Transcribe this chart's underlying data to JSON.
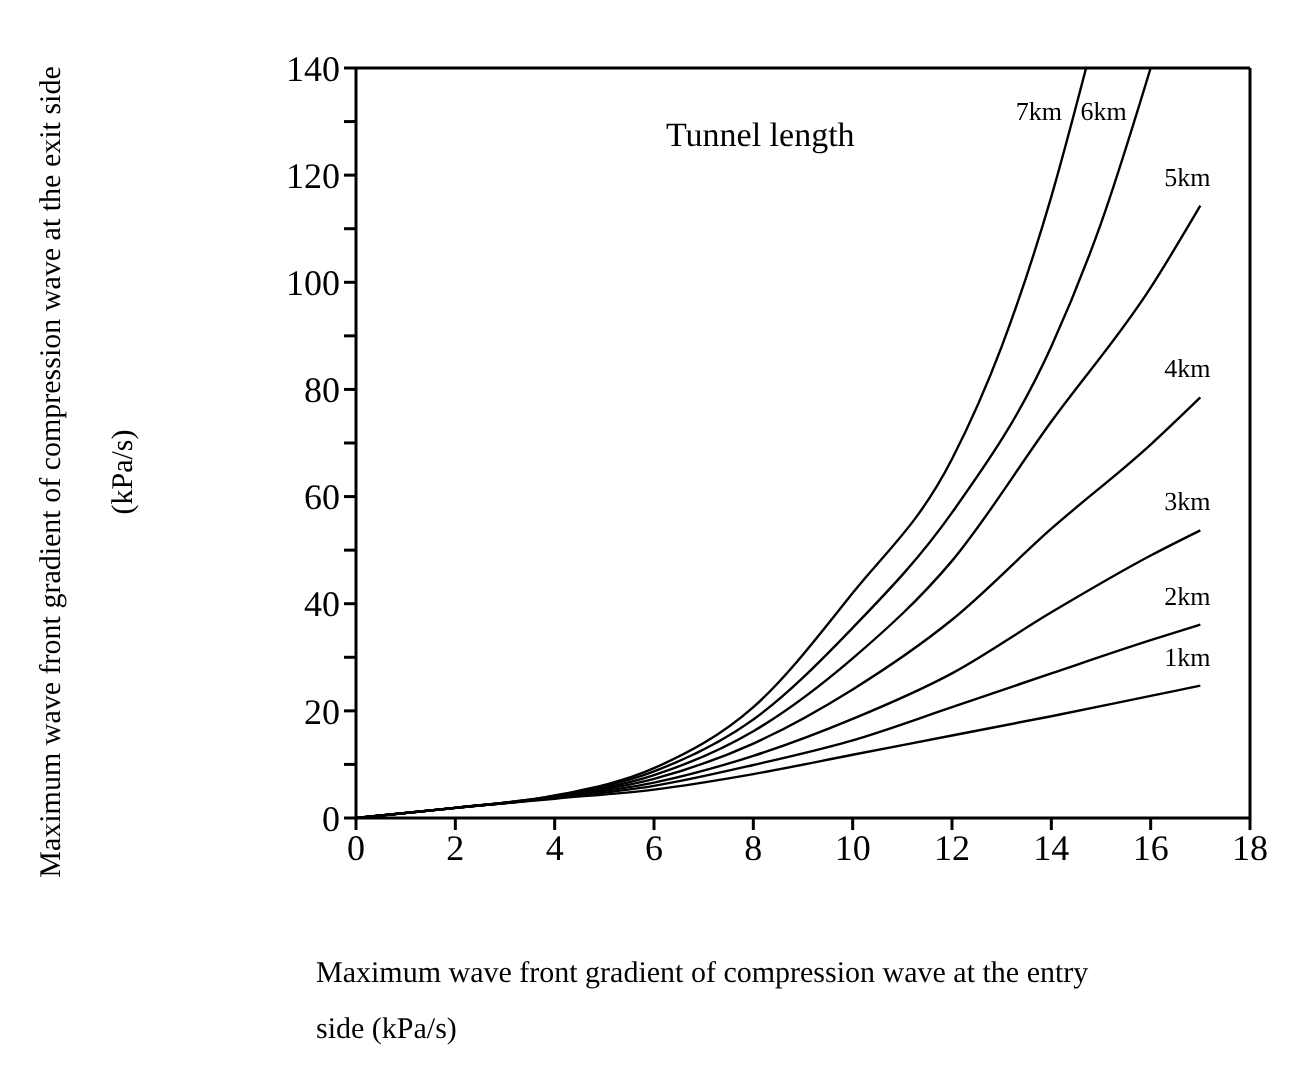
{
  "chart_data": {
    "type": "line",
    "xlabel": "Maximum wave front gradient of compression wave at the entry side (kPa/s)",
    "ylabel": "Maximum wave front gradient of compression wave at the exit side (kPa/s)",
    "xlim": [
      0,
      18
    ],
    "ylim": [
      0,
      140
    ],
    "xticks": [
      0,
      2,
      4,
      6,
      8,
      10,
      12,
      14,
      16,
      18
    ],
    "yticks": [
      0,
      {
        "value": 10,
        "label": null
      },
      20,
      {
        "value": 30,
        "label": null
      },
      40,
      {
        "value": 50,
        "label": null
      },
      60,
      {
        "value": 70,
        "label": null
      },
      80,
      {
        "value": 90,
        "label": null
      },
      100,
      {
        "value": 110,
        "label": null
      },
      120,
      {
        "value": 130,
        "label": null
      },
      140
    ],
    "legend": false,
    "marker": "none",
    "line_style": "solid",
    "annotations": [
      "Tunnel length"
    ],
    "series": [
      {
        "name": "1km",
        "color": "#000000",
        "x": [
          0,
          2,
          4,
          6,
          8,
          10,
          12,
          14,
          16,
          17
        ],
        "values": [
          0,
          1.9,
          3.6,
          5.3,
          8.2,
          11.8,
          15.4,
          19,
          22.8,
          24.7
        ]
      },
      {
        "name": "2km",
        "color": "#000000",
        "x": [
          0,
          2,
          4,
          6,
          8,
          10,
          12,
          14,
          16,
          17
        ],
        "values": [
          0,
          1.9,
          3.7,
          6,
          9.9,
          14.5,
          20.7,
          27,
          33.2,
          36.1
        ]
      },
      {
        "name": "3km",
        "color": "#000000",
        "x": [
          0,
          2,
          4,
          6,
          8,
          10,
          12,
          14,
          16,
          17
        ],
        "values": [
          0,
          1.9,
          3.8,
          6.6,
          11.6,
          18.5,
          27,
          38.4,
          49,
          53.7
        ]
      },
      {
        "name": "4km",
        "color": "#000000",
        "x": [
          0,
          2,
          4,
          6,
          8,
          10,
          12,
          14,
          16,
          17
        ],
        "values": [
          0,
          1.9,
          3.9,
          7.3,
          13.9,
          24,
          37,
          54,
          69.7,
          78.5
        ]
      },
      {
        "name": "5km",
        "color": "#000000",
        "x": [
          0,
          2,
          4,
          6,
          8,
          10,
          12,
          14,
          16,
          17
        ],
        "values": [
          0,
          1.9,
          4,
          8,
          16.2,
          29.8,
          48,
          74,
          99,
          114.3
        ]
      },
      {
        "name": "6km",
        "color": "#000000",
        "x": [
          0,
          2,
          4,
          6,
          8,
          10,
          12,
          14,
          15,
          16
        ],
        "values": [
          0,
          1.9,
          4.1,
          8.7,
          18.4,
          35.5,
          57,
          88,
          111,
          140
        ]
      },
      {
        "name": "7km",
        "color": "#000000",
        "x": [
          0,
          2,
          4,
          6,
          8,
          10,
          12,
          13,
          14,
          14.7
        ],
        "values": [
          0,
          1.9,
          4.2,
          9.3,
          20.7,
          42,
          67,
          88,
          116,
          140
        ]
      }
    ]
  }
}
